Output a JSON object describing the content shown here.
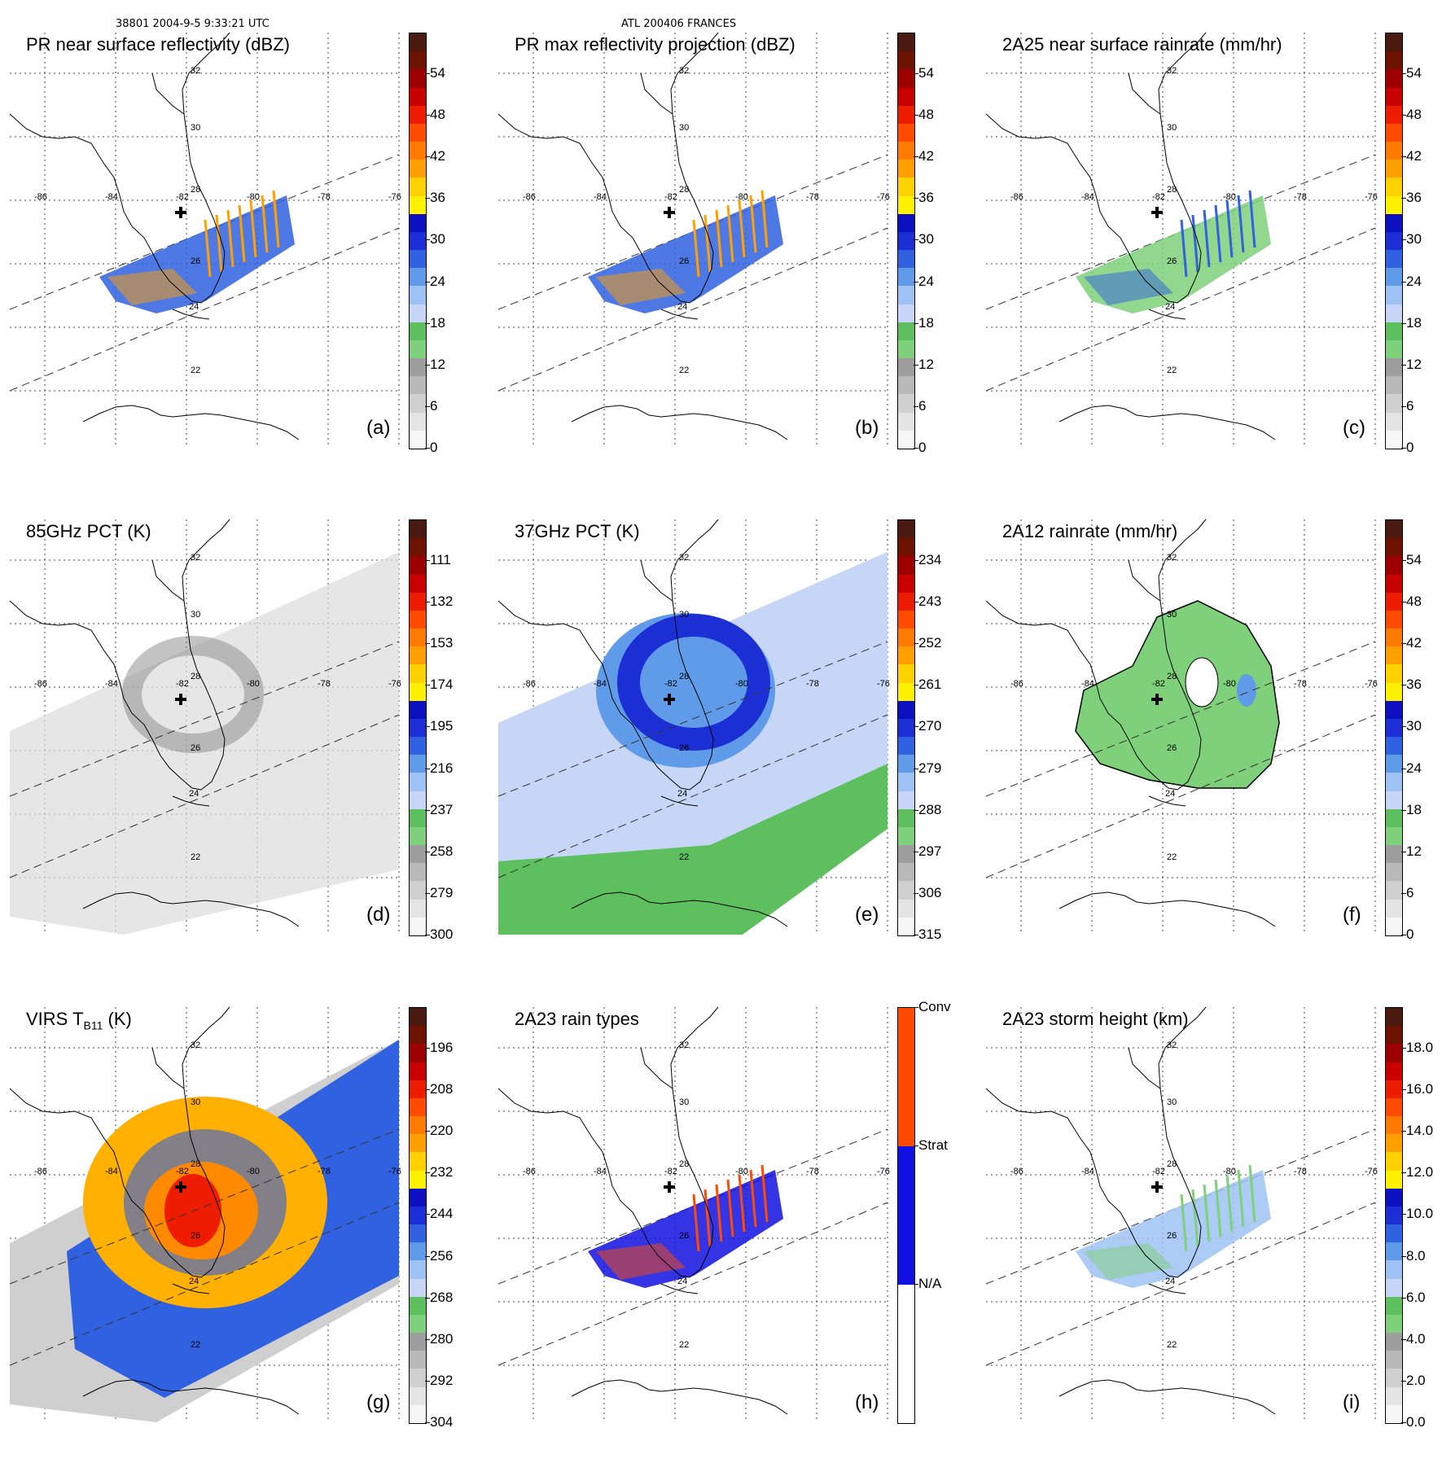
{
  "header": {
    "orbit_time": "38801 2004-9-5 9:33:21 UTC",
    "storm": "ATL 200406 FRANCES"
  },
  "coords": {
    "lon": [
      "-86",
      "-84",
      "-82",
      "-80",
      "-78",
      "-76"
    ],
    "lat": [
      "32",
      "30",
      "28",
      "26",
      "24",
      "22"
    ]
  },
  "panels": [
    {
      "id": "a",
      "title": "PR near surface reflectivity (dBZ)",
      "label": "(a)",
      "ticks": [
        "54",
        "48",
        "42",
        "36",
        "30",
        "24",
        "18",
        "12",
        "6",
        "0"
      ],
      "fill": "pr"
    },
    {
      "id": "b",
      "title": "PR max reflectivity projection (dBZ)",
      "label": "(b)",
      "ticks": [
        "54",
        "48",
        "42",
        "36",
        "30",
        "24",
        "18",
        "12",
        "6",
        "0"
      ],
      "fill": "pr"
    },
    {
      "id": "c",
      "title": "2A25 near surface rainrate (mm/hr)",
      "label": "(c)",
      "ticks": [
        "54",
        "48",
        "42",
        "36",
        "30",
        "24",
        "18",
        "12",
        "6",
        "0"
      ],
      "fill": "rain"
    },
    {
      "id": "d",
      "title": "85GHz PCT (K)",
      "label": "(d)",
      "ticks": [
        "111",
        "132",
        "153",
        "174",
        "195",
        "216",
        "237",
        "258",
        "279",
        "300"
      ],
      "fill": "pct85"
    },
    {
      "id": "e",
      "title": "37GHz PCT (K)",
      "label": "(e)",
      "ticks": [
        "234",
        "243",
        "252",
        "261",
        "270",
        "279",
        "288",
        "297",
        "306",
        "315"
      ],
      "fill": "pct37"
    },
    {
      "id": "f",
      "title": "2A12 rainrate (mm/hr)",
      "label": "(f)",
      "ticks": [
        "54",
        "48",
        "42",
        "36",
        "30",
        "24",
        "18",
        "12",
        "6",
        "0"
      ],
      "fill": "rain2"
    },
    {
      "id": "g",
      "title": "VIRS T",
      "title_sub": "B11",
      "title_unit": " (K)",
      "label": "(g)",
      "ticks": [
        "196",
        "208",
        "220",
        "232",
        "244",
        "256",
        "268",
        "280",
        "292",
        "304"
      ],
      "fill": "virs"
    },
    {
      "id": "h",
      "title": "2A23 rain types",
      "label": "(h)",
      "ticks": [
        "Conv",
        "Strat",
        "N/A"
      ],
      "fill": "types"
    },
    {
      "id": "i",
      "title": "2A23 storm height (km)",
      "label": "(i)",
      "ticks": [
        "18.0",
        "16.0",
        "14.0",
        "12.0",
        "10.0",
        "8.0",
        "6.0",
        "4.0",
        "2.0",
        "0.0"
      ],
      "fill": "height"
    }
  ],
  "colors": {
    "scale": [
      "#f7f7f7",
      "#e4e4e4",
      "#cfcfcf",
      "#b9b9b9",
      "#9e9e9e",
      "#7fd07a",
      "#5dbf5e",
      "#c7d6f7",
      "#9ec2f3",
      "#5f9be9",
      "#2f61e0",
      "#1c2fd4",
      "#0c10c0",
      "#fff200",
      "#ffd100",
      "#ff9f00",
      "#ff7a00",
      "#ff4b00",
      "#ee1c00",
      "#c80000",
      "#9c0000",
      "#6e1200",
      "#4a1a10"
    ],
    "types": [
      "#ffffff",
      "#1010e0",
      "#ff4a00"
    ]
  }
}
